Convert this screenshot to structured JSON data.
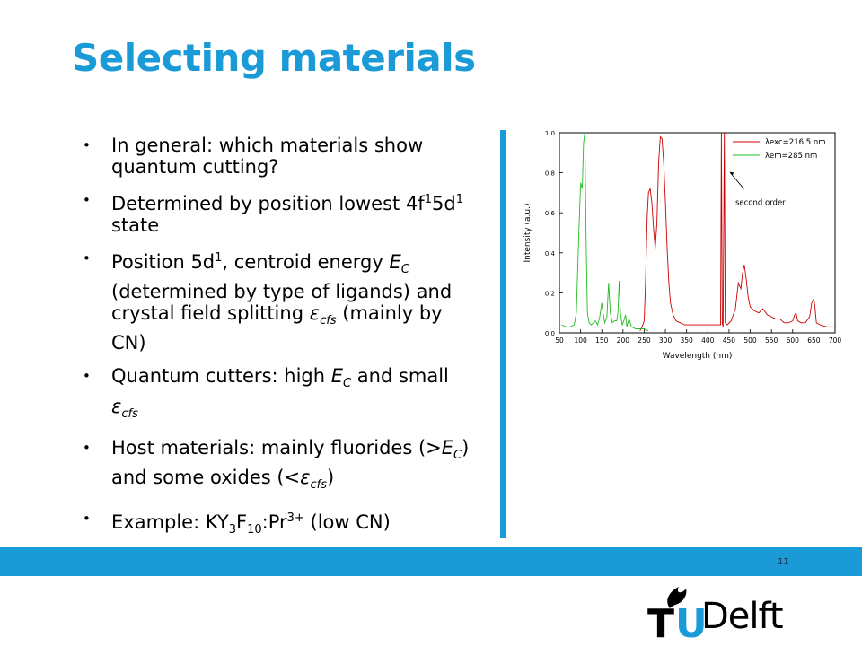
{
  "slide": {
    "title": "Selecting materials",
    "page_number": "11"
  },
  "bullets": [
    "In general: which materials show quantum cutting?",
    "Determined by position lowest 4f¹5d¹ state",
    "Position 5d¹, centroid energy E_C (determined by type of ligands) and crystal field splitting ε_cfs (mainly by CN)",
    "Quantum cutters: high E_C and small ε_cfs",
    "Host materials: mainly fluorides (>E_C) and some oxides (<ε_cfs)",
    "Example: KY₃F₁₀:Pr³⁺ (low CN)"
  ],
  "bullet_parts": {
    "b1": "In general: which materials show quantum cutting?",
    "b2_a": "Determined by position lowest 4f",
    "b2_sup1": "1",
    "b2_b": "5d",
    "b2_sup2": "1",
    "b2_c": " state",
    "b3_a": "Position 5d",
    "b3_sup": "1",
    "b3_b": ", centroid energy ",
    "b3_E": "E",
    "b3_C": "C",
    "b3_c": " (determined by type of ligands) and crystal field splitting ",
    "b3_eps": "ε",
    "b3_cfs": "cfs",
    "b3_d": " (mainly by CN)",
    "b4_a": "Quantum cutters: high ",
    "b4_E": "E",
    "b4_C": "C",
    "b4_b": " and small ",
    "b4_eps": "ε",
    "b4_cfs": "cfs",
    "b5_a": "Host materials: mainly fluorides (>",
    "b5_E": "E",
    "b5_C": "C",
    "b5_b": ") and some oxides (<",
    "b5_eps": "ε",
    "b5_cfs": "cfs",
    "b5_c": ")",
    "b6_a": "Example: KY",
    "b6_s1": "3",
    "b6_b": "F",
    "b6_s2": "10",
    "b6_c": ":Pr",
    "b6_sup": "3+",
    "b6_d": " (low CN)"
  },
  "colors": {
    "accent": "#1a9ad6",
    "series_red": "#cc0000",
    "series_green": "#22bb22"
  },
  "logo": {
    "text": "Delft",
    "t": "T",
    "u": "U"
  },
  "chart_data": {
    "type": "line",
    "xlabel": "Wavelength (nm)",
    "ylabel": "Intensity (a.u.)",
    "xlim": [
      50,
      700
    ],
    "ylim": [
      0.0,
      1.0
    ],
    "xticks": [
      "50",
      "100",
      "150",
      "200",
      "250",
      "300",
      "350",
      "400",
      "450",
      "500",
      "550",
      "600",
      "650",
      "700"
    ],
    "yticks": [
      "0.0",
      "0,2",
      "0,4",
      "0,6",
      "0,8",
      "1,0"
    ],
    "legend_position": "top-right",
    "series": [
      {
        "name": "λexc=216.5 nm",
        "color": "#cc0000",
        "points": [
          [
            240,
            0.01
          ],
          [
            245,
            0.03
          ],
          [
            250,
            0.06
          ],
          [
            253,
            0.25
          ],
          [
            257,
            0.58
          ],
          [
            260,
            0.7
          ],
          [
            264,
            0.72
          ],
          [
            268,
            0.65
          ],
          [
            272,
            0.52
          ],
          [
            276,
            0.42
          ],
          [
            280,
            0.55
          ],
          [
            284,
            0.85
          ],
          [
            288,
            0.98
          ],
          [
            292,
            0.97
          ],
          [
            296,
            0.85
          ],
          [
            300,
            0.65
          ],
          [
            304,
            0.42
          ],
          [
            308,
            0.25
          ],
          [
            312,
            0.15
          ],
          [
            318,
            0.09
          ],
          [
            325,
            0.06
          ],
          [
            335,
            0.05
          ],
          [
            345,
            0.04
          ],
          [
            360,
            0.04
          ],
          [
            375,
            0.04
          ],
          [
            390,
            0.04
          ],
          [
            405,
            0.04
          ],
          [
            415,
            0.04
          ],
          [
            425,
            0.04
          ],
          [
            430,
            0.04
          ],
          [
            432,
            1.0
          ],
          [
            434,
            0.05
          ],
          [
            436,
            0.03
          ],
          [
            439,
            1.0
          ],
          [
            441,
            0.05
          ],
          [
            446,
            0.04
          ],
          [
            455,
            0.06
          ],
          [
            465,
            0.12
          ],
          [
            472,
            0.25
          ],
          [
            478,
            0.22
          ],
          [
            482,
            0.3
          ],
          [
            486,
            0.34
          ],
          [
            490,
            0.28
          ],
          [
            495,
            0.18
          ],
          [
            500,
            0.13
          ],
          [
            510,
            0.11
          ],
          [
            520,
            0.1
          ],
          [
            530,
            0.12
          ],
          [
            540,
            0.09
          ],
          [
            550,
            0.08
          ],
          [
            560,
            0.07
          ],
          [
            570,
            0.07
          ],
          [
            580,
            0.05
          ],
          [
            590,
            0.05
          ],
          [
            600,
            0.06
          ],
          [
            605,
            0.09
          ],
          [
            608,
            0.1
          ],
          [
            612,
            0.06
          ],
          [
            620,
            0.05
          ],
          [
            630,
            0.05
          ],
          [
            640,
            0.08
          ],
          [
            645,
            0.15
          ],
          [
            650,
            0.17
          ],
          [
            653,
            0.12
          ],
          [
            656,
            0.05
          ],
          [
            665,
            0.04
          ],
          [
            680,
            0.03
          ],
          [
            700,
            0.03
          ]
        ]
      },
      {
        "name": "λem=285 nm",
        "color": "#22bb22",
        "points": [
          [
            55,
            0.04
          ],
          [
            65,
            0.03
          ],
          [
            75,
            0.03
          ],
          [
            85,
            0.04
          ],
          [
            90,
            0.1
          ],
          [
            95,
            0.45
          ],
          [
            100,
            0.75
          ],
          [
            104,
            0.72
          ],
          [
            107,
            0.95
          ],
          [
            110,
            1.0
          ],
          [
            113,
            0.45
          ],
          [
            116,
            0.1
          ],
          [
            120,
            0.05
          ],
          [
            125,
            0.04
          ],
          [
            130,
            0.05
          ],
          [
            135,
            0.06
          ],
          [
            140,
            0.04
          ],
          [
            145,
            0.08
          ],
          [
            150,
            0.15
          ],
          [
            153,
            0.1
          ],
          [
            157,
            0.05
          ],
          [
            162,
            0.08
          ],
          [
            166,
            0.25
          ],
          [
            170,
            0.1
          ],
          [
            175,
            0.05
          ],
          [
            180,
            0.06
          ],
          [
            185,
            0.06
          ],
          [
            188,
            0.1
          ],
          [
            191,
            0.26
          ],
          [
            194,
            0.1
          ],
          [
            198,
            0.04
          ],
          [
            202,
            0.06
          ],
          [
            206,
            0.09
          ],
          [
            209,
            0.03
          ],
          [
            214,
            0.07
          ],
          [
            220,
            0.03
          ],
          [
            230,
            0.02
          ],
          [
            240,
            0.02
          ],
          [
            250,
            0.02
          ],
          [
            260,
            0.01
          ]
        ]
      }
    ],
    "annotations": [
      "second order"
    ]
  }
}
